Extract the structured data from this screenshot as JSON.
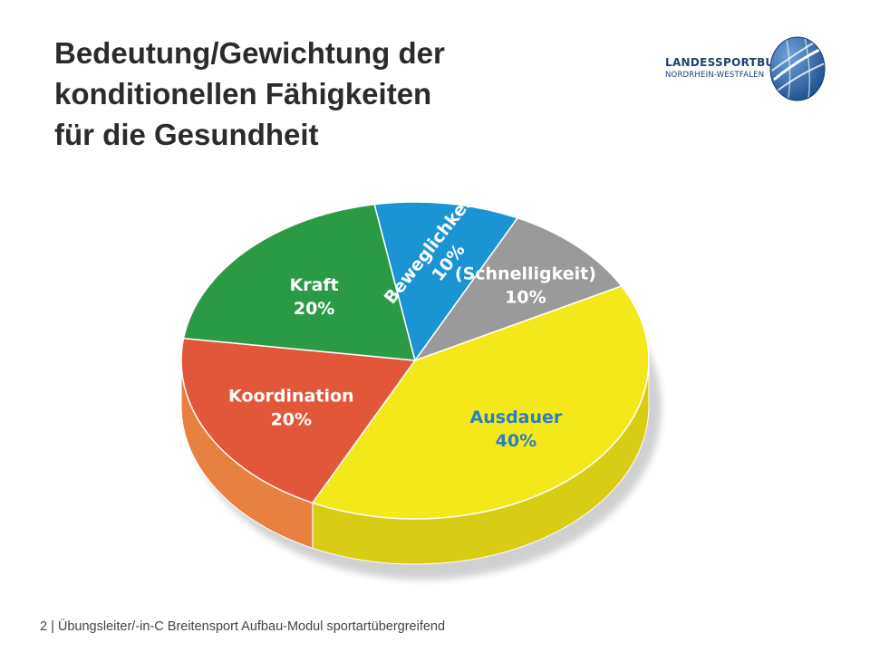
{
  "slide": {
    "title_lines": [
      "Bedeutung/Gewichtung der",
      "konditionellen Fähigkeiten",
      "für die Gesundheit"
    ],
    "footer": "2 | Übungsleiter/-in-C Breitensport Aufbau-Modul sportartübergreifend"
  },
  "logo": {
    "line1": "LANDESSPORTBUND",
    "line2": "NORDRHEIN-WESTFALEN",
    "icon": "lsb-globe-icon",
    "color": "#1f4f8f"
  },
  "chart_data": {
    "type": "pie",
    "slices": [
      {
        "name": "Ausdauer",
        "value_label": "40%",
        "value": 40,
        "color": "#f5e81a",
        "side_color": "#d9cc14",
        "label_color": "#2a7fc4"
      },
      {
        "name": "Koordination",
        "value_label": "20%",
        "value": 20,
        "color": "#e2573a",
        "side_color": "#e8803f",
        "label_color": "#ffffff"
      },
      {
        "name": "Kraft",
        "value_label": "20%",
        "value": 20,
        "color": "#2a9a45",
        "side_color": "#80c468",
        "label_color": "#ffffff"
      },
      {
        "name": "Beweglichkeit",
        "value_label": "10%",
        "value": 10,
        "color": "#1a94d2",
        "side_color": "#8fd4f5",
        "label_color": "#ffffff"
      },
      {
        "name": "(Schnelligkeit)",
        "value_label": "10%",
        "value": 10,
        "color": "#9a9a9a",
        "side_color": "#7b7b7b",
        "label_color": "#ffffff"
      }
    ]
  }
}
